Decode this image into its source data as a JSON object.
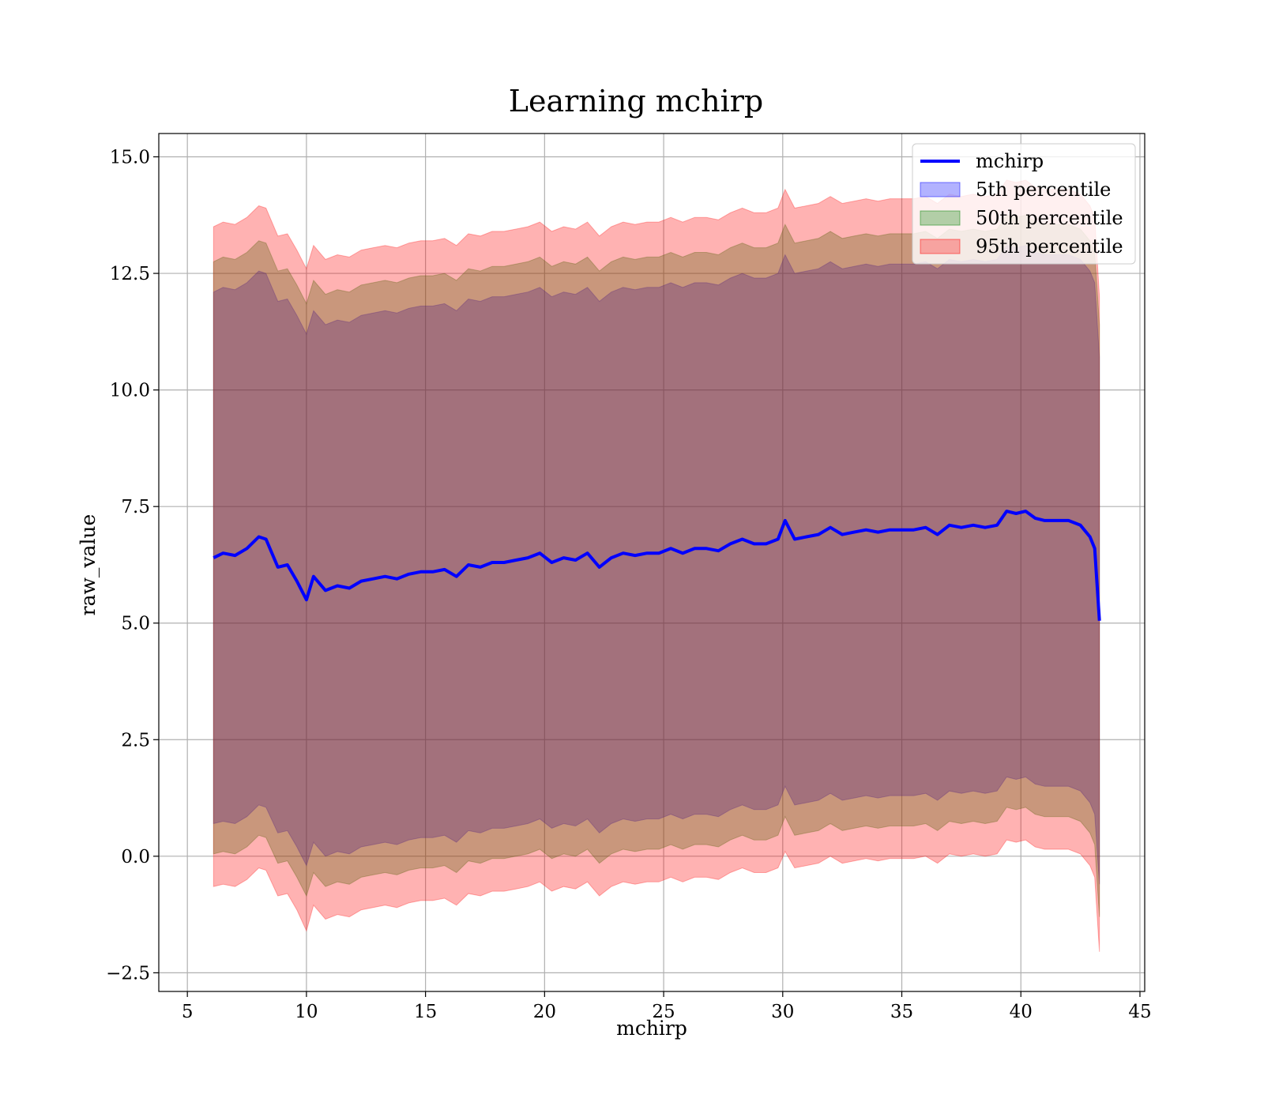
{
  "chart_data": {
    "type": "area",
    "title": "Learning mchirp",
    "xlabel": "mchirp",
    "ylabel": "raw_value",
    "xlim": [
      3.8,
      45.2
    ],
    "ylim": [
      -2.9,
      15.5
    ],
    "xticks": [
      5,
      10,
      15,
      20,
      25,
      30,
      35,
      40,
      45
    ],
    "xtick_labels": [
      "5",
      "10",
      "15",
      "20",
      "25",
      "30",
      "35",
      "40",
      "45"
    ],
    "yticks": [
      -2.5,
      0.0,
      2.5,
      5.0,
      7.5,
      10.0,
      12.5,
      15.0
    ],
    "ytick_labels": [
      "−2.5",
      "0.0",
      "2.5",
      "5.0",
      "7.5",
      "10.0",
      "12.5",
      "15.0"
    ],
    "grid": true,
    "legend_position": "top-right",
    "colors": {
      "line": "#0000ff",
      "band_5": "#0000ff",
      "band_50": "#008000",
      "band_95": "#ff0000"
    },
    "series": [
      {
        "name": "mchirp",
        "kind": "line",
        "x": [
          6.1,
          6.5,
          7,
          7.5,
          8,
          8.3,
          8.8,
          9.2,
          9.6,
          10,
          10.3,
          10.8,
          11.3,
          11.8,
          12.3,
          12.8,
          13.3,
          13.8,
          14.3,
          14.8,
          15.3,
          15.8,
          16.3,
          16.8,
          17.3,
          17.8,
          18.3,
          18.8,
          19.3,
          19.8,
          20.3,
          20.8,
          21.3,
          21.8,
          22.3,
          22.8,
          23.3,
          23.8,
          24.3,
          24.8,
          25.3,
          25.8,
          26.3,
          26.8,
          27.3,
          27.8,
          28.3,
          28.8,
          29.3,
          29.8,
          30.1,
          30.5,
          31,
          31.5,
          32,
          32.5,
          33,
          33.5,
          34,
          34.5,
          35,
          35.5,
          36,
          36.5,
          37,
          37.5,
          38,
          38.5,
          39,
          39.4,
          39.8,
          40.2,
          40.6,
          41,
          41.5,
          42,
          42.5,
          42.9,
          43.1,
          43.3
        ],
        "y": [
          6.4,
          6.5,
          6.45,
          6.6,
          6.85,
          6.8,
          6.2,
          6.25,
          5.9,
          5.5,
          6.0,
          5.7,
          5.8,
          5.75,
          5.9,
          5.95,
          6.0,
          5.95,
          6.05,
          6.1,
          6.1,
          6.15,
          6.0,
          6.25,
          6.2,
          6.3,
          6.3,
          6.35,
          6.4,
          6.5,
          6.3,
          6.4,
          6.35,
          6.5,
          6.2,
          6.4,
          6.5,
          6.45,
          6.5,
          6.5,
          6.6,
          6.5,
          6.6,
          6.6,
          6.55,
          6.7,
          6.8,
          6.7,
          6.7,
          6.8,
          7.2,
          6.8,
          6.85,
          6.9,
          7.05,
          6.9,
          6.95,
          7.0,
          6.95,
          7.0,
          7.0,
          7.0,
          7.05,
          6.9,
          7.1,
          7.05,
          7.1,
          7.05,
          7.1,
          7.4,
          7.35,
          7.4,
          7.25,
          7.2,
          7.2,
          7.2,
          7.1,
          6.85,
          6.6,
          5.05
        ]
      },
      {
        "name": "5th percentile",
        "kind": "band",
        "x": [
          6.1,
          6.5,
          7,
          7.5,
          8,
          8.3,
          8.8,
          9.2,
          9.6,
          10,
          10.3,
          10.8,
          11.3,
          11.8,
          12.3,
          12.8,
          13.3,
          13.8,
          14.3,
          14.8,
          15.3,
          15.8,
          16.3,
          16.8,
          17.3,
          17.8,
          18.3,
          18.8,
          19.3,
          19.8,
          20.3,
          20.8,
          21.3,
          21.8,
          22.3,
          22.8,
          23.3,
          23.8,
          24.3,
          24.8,
          25.3,
          25.8,
          26.3,
          26.8,
          27.3,
          27.8,
          28.3,
          28.8,
          29.3,
          29.8,
          30.1,
          30.5,
          31,
          31.5,
          32,
          32.5,
          33,
          33.5,
          34,
          34.5,
          35,
          35.5,
          36,
          36.5,
          37,
          37.5,
          38,
          38.5,
          39,
          39.4,
          39.8,
          40.2,
          40.6,
          41,
          41.5,
          42,
          42.5,
          42.9,
          43.1,
          43.3
        ],
        "lower": [
          0.7,
          0.75,
          0.7,
          0.85,
          1.1,
          1.05,
          0.5,
          0.55,
          0.2,
          -0.2,
          0.3,
          0.0,
          0.1,
          0.05,
          0.2,
          0.25,
          0.3,
          0.25,
          0.35,
          0.4,
          0.4,
          0.45,
          0.3,
          0.55,
          0.5,
          0.6,
          0.6,
          0.65,
          0.7,
          0.8,
          0.6,
          0.7,
          0.65,
          0.8,
          0.5,
          0.7,
          0.8,
          0.75,
          0.8,
          0.8,
          0.9,
          0.8,
          0.9,
          0.9,
          0.85,
          1.0,
          1.1,
          1.0,
          1.0,
          1.1,
          1.5,
          1.1,
          1.15,
          1.2,
          1.35,
          1.2,
          1.25,
          1.3,
          1.25,
          1.3,
          1.3,
          1.3,
          1.35,
          1.2,
          1.4,
          1.35,
          1.4,
          1.35,
          1.4,
          1.7,
          1.65,
          1.7,
          1.55,
          1.5,
          1.5,
          1.5,
          1.4,
          1.15,
          0.9,
          -0.6
        ],
        "upper": [
          12.1,
          12.2,
          12.15,
          12.3,
          12.55,
          12.5,
          11.9,
          11.95,
          11.6,
          11.2,
          11.7,
          11.4,
          11.5,
          11.45,
          11.6,
          11.65,
          11.7,
          11.65,
          11.75,
          11.8,
          11.8,
          11.85,
          11.7,
          11.95,
          11.9,
          12.0,
          12.0,
          12.05,
          12.1,
          12.2,
          12.0,
          12.1,
          12.05,
          12.2,
          11.9,
          12.1,
          12.2,
          12.15,
          12.2,
          12.2,
          12.3,
          12.2,
          12.3,
          12.3,
          12.25,
          12.4,
          12.5,
          12.4,
          12.4,
          12.5,
          12.9,
          12.5,
          12.55,
          12.6,
          12.75,
          12.6,
          12.65,
          12.7,
          12.65,
          12.7,
          12.7,
          12.7,
          12.75,
          12.6,
          12.8,
          12.75,
          12.8,
          12.75,
          12.8,
          13.1,
          13.05,
          13.1,
          12.95,
          12.9,
          12.9,
          12.9,
          12.8,
          12.55,
          12.3,
          10.7
        ]
      },
      {
        "name": "50th percentile",
        "kind": "band",
        "x": [
          6.1,
          6.5,
          7,
          7.5,
          8,
          8.3,
          8.8,
          9.2,
          9.6,
          10,
          10.3,
          10.8,
          11.3,
          11.8,
          12.3,
          12.8,
          13.3,
          13.8,
          14.3,
          14.8,
          15.3,
          15.8,
          16.3,
          16.8,
          17.3,
          17.8,
          18.3,
          18.8,
          19.3,
          19.8,
          20.3,
          20.8,
          21.3,
          21.8,
          22.3,
          22.8,
          23.3,
          23.8,
          24.3,
          24.8,
          25.3,
          25.8,
          26.3,
          26.8,
          27.3,
          27.8,
          28.3,
          28.8,
          29.3,
          29.8,
          30.1,
          30.5,
          31,
          31.5,
          32,
          32.5,
          33,
          33.5,
          34,
          34.5,
          35,
          35.5,
          36,
          36.5,
          37,
          37.5,
          38,
          38.5,
          39,
          39.4,
          39.8,
          40.2,
          40.6,
          41,
          41.5,
          42,
          42.5,
          42.9,
          43.1,
          43.3
        ],
        "lower": [
          0.05,
          0.1,
          0.05,
          0.2,
          0.45,
          0.4,
          -0.15,
          -0.1,
          -0.45,
          -0.85,
          -0.35,
          -0.65,
          -0.55,
          -0.6,
          -0.45,
          -0.4,
          -0.35,
          -0.4,
          -0.3,
          -0.25,
          -0.25,
          -0.2,
          -0.35,
          -0.1,
          -0.15,
          -0.05,
          -0.05,
          0.0,
          0.05,
          0.15,
          -0.05,
          0.05,
          0.0,
          0.15,
          -0.15,
          0.05,
          0.15,
          0.1,
          0.15,
          0.15,
          0.25,
          0.15,
          0.25,
          0.25,
          0.2,
          0.35,
          0.45,
          0.35,
          0.35,
          0.45,
          0.85,
          0.45,
          0.5,
          0.55,
          0.7,
          0.55,
          0.6,
          0.65,
          0.6,
          0.65,
          0.65,
          0.65,
          0.7,
          0.55,
          0.75,
          0.7,
          0.75,
          0.7,
          0.75,
          1.05,
          1.0,
          1.05,
          0.9,
          0.85,
          0.85,
          0.85,
          0.75,
          0.5,
          0.25,
          -1.3
        ],
        "upper": [
          12.75,
          12.85,
          12.8,
          12.95,
          13.2,
          13.15,
          12.55,
          12.6,
          12.25,
          11.85,
          12.35,
          12.05,
          12.15,
          12.1,
          12.25,
          12.3,
          12.35,
          12.3,
          12.4,
          12.45,
          12.45,
          12.5,
          12.35,
          12.6,
          12.55,
          12.65,
          12.65,
          12.7,
          12.75,
          12.85,
          12.65,
          12.75,
          12.7,
          12.85,
          12.55,
          12.75,
          12.85,
          12.8,
          12.85,
          12.85,
          12.95,
          12.85,
          12.95,
          12.95,
          12.9,
          13.05,
          13.15,
          13.05,
          13.05,
          13.15,
          13.55,
          13.15,
          13.2,
          13.25,
          13.4,
          13.25,
          13.3,
          13.35,
          13.3,
          13.35,
          13.35,
          13.35,
          13.4,
          13.25,
          13.45,
          13.4,
          13.45,
          13.4,
          13.45,
          13.75,
          13.7,
          13.75,
          13.6,
          13.55,
          13.55,
          13.55,
          13.45,
          13.2,
          12.95,
          11.4
        ]
      },
      {
        "name": "95th percentile",
        "kind": "band",
        "x": [
          6.1,
          6.5,
          7,
          7.5,
          8,
          8.3,
          8.8,
          9.2,
          9.6,
          10,
          10.3,
          10.8,
          11.3,
          11.8,
          12.3,
          12.8,
          13.3,
          13.8,
          14.3,
          14.8,
          15.3,
          15.8,
          16.3,
          16.8,
          17.3,
          17.8,
          18.3,
          18.8,
          19.3,
          19.8,
          20.3,
          20.8,
          21.3,
          21.8,
          22.3,
          22.8,
          23.3,
          23.8,
          24.3,
          24.8,
          25.3,
          25.8,
          26.3,
          26.8,
          27.3,
          27.8,
          28.3,
          28.8,
          29.3,
          29.8,
          30.1,
          30.5,
          31,
          31.5,
          32,
          32.5,
          33,
          33.5,
          34,
          34.5,
          35,
          35.5,
          36,
          36.5,
          37,
          37.5,
          38,
          38.5,
          39,
          39.4,
          39.8,
          40.2,
          40.6,
          41,
          41.5,
          42,
          42.5,
          42.9,
          43.1,
          43.3
        ],
        "lower": [
          -0.65,
          -0.6,
          -0.65,
          -0.5,
          -0.25,
          -0.3,
          -0.85,
          -0.8,
          -1.15,
          -1.6,
          -1.05,
          -1.35,
          -1.25,
          -1.3,
          -1.15,
          -1.1,
          -1.05,
          -1.1,
          -1.0,
          -0.95,
          -0.95,
          -0.9,
          -1.05,
          -0.8,
          -0.85,
          -0.75,
          -0.75,
          -0.7,
          -0.65,
          -0.55,
          -0.75,
          -0.65,
          -0.7,
          -0.55,
          -0.85,
          -0.65,
          -0.55,
          -0.6,
          -0.55,
          -0.55,
          -0.45,
          -0.55,
          -0.45,
          -0.45,
          -0.5,
          -0.35,
          -0.25,
          -0.35,
          -0.35,
          -0.25,
          0.1,
          -0.25,
          -0.2,
          -0.15,
          0.0,
          -0.15,
          -0.1,
          -0.05,
          -0.1,
          -0.05,
          -0.05,
          -0.05,
          0.0,
          -0.15,
          0.05,
          0.0,
          0.05,
          0.0,
          0.05,
          0.35,
          0.3,
          0.35,
          0.2,
          0.15,
          0.15,
          0.15,
          0.05,
          -0.2,
          -0.45,
          -2.05
        ],
        "upper": [
          13.5,
          13.6,
          13.55,
          13.7,
          13.95,
          13.9,
          13.3,
          13.35,
          13.0,
          12.6,
          13.1,
          12.8,
          12.9,
          12.85,
          13.0,
          13.05,
          13.1,
          13.05,
          13.15,
          13.2,
          13.2,
          13.25,
          13.1,
          13.35,
          13.3,
          13.4,
          13.4,
          13.45,
          13.5,
          13.6,
          13.4,
          13.5,
          13.45,
          13.6,
          13.3,
          13.5,
          13.6,
          13.55,
          13.6,
          13.6,
          13.7,
          13.6,
          13.7,
          13.7,
          13.65,
          13.8,
          13.9,
          13.8,
          13.8,
          13.9,
          14.3,
          13.9,
          13.95,
          14.0,
          14.15,
          14.0,
          14.05,
          14.1,
          14.05,
          14.1,
          14.1,
          14.1,
          14.15,
          14.0,
          14.2,
          14.15,
          14.2,
          14.15,
          14.2,
          14.5,
          14.45,
          14.5,
          14.35,
          14.3,
          14.3,
          14.3,
          14.2,
          13.95,
          13.7,
          12.0
        ]
      }
    ]
  }
}
